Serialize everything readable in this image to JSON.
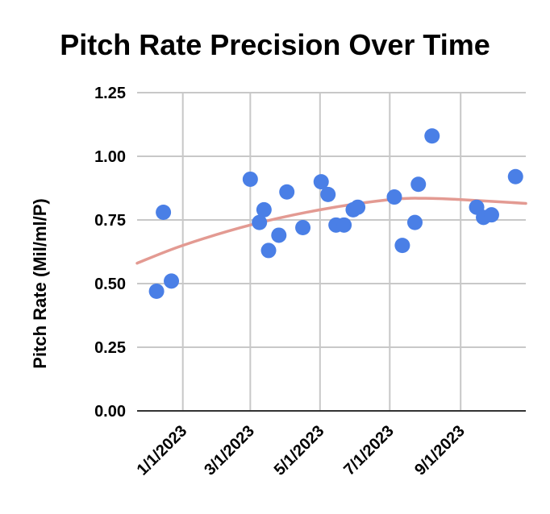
{
  "chart_data": {
    "type": "scatter",
    "title": "Pitch Rate Precision Over Time",
    "xlabel": "",
    "ylabel": "Pitch Rate (Mil/ml/P)",
    "xlim": [
      "2022-11-22",
      "2023-10-28"
    ],
    "ylim": [
      0,
      1.25
    ],
    "grid": true,
    "legend": "none",
    "x_ticks": [
      "2023-01-01",
      "2023-03-01",
      "2023-05-01",
      "2023-07-01",
      "2023-09-01"
    ],
    "x_tick_labels": [
      "1/1/2023",
      "3/1/2023",
      "5/1/2023",
      "7/1/2023",
      "9/1/2023"
    ],
    "y_ticks": [
      0,
      0.25,
      0.5,
      0.75,
      1.0,
      1.25
    ],
    "y_tick_labels": [
      "0.00",
      "0.25",
      "0.50",
      "0.75",
      "1.00",
      "1.25"
    ],
    "series": [
      {
        "color": "#4a7fe6",
        "points": [
          {
            "x": "2022-12-09",
            "y": 0.47
          },
          {
            "x": "2022-12-15",
            "y": 0.78
          },
          {
            "x": "2022-12-22",
            "y": 0.51
          },
          {
            "x": "2023-03-01",
            "y": 0.91
          },
          {
            "x": "2023-03-09",
            "y": 0.74
          },
          {
            "x": "2023-03-13",
            "y": 0.79
          },
          {
            "x": "2023-03-17",
            "y": 0.63
          },
          {
            "x": "2023-03-26",
            "y": 0.69
          },
          {
            "x": "2023-04-02",
            "y": 0.86
          },
          {
            "x": "2023-04-16",
            "y": 0.72
          },
          {
            "x": "2023-05-02",
            "y": 0.9
          },
          {
            "x": "2023-05-08",
            "y": 0.85
          },
          {
            "x": "2023-05-15",
            "y": 0.73
          },
          {
            "x": "2023-05-22",
            "y": 0.73
          },
          {
            "x": "2023-05-30",
            "y": 0.79
          },
          {
            "x": "2023-06-03",
            "y": 0.8
          },
          {
            "x": "2023-07-05",
            "y": 0.84
          },
          {
            "x": "2023-07-12",
            "y": 0.65
          },
          {
            "x": "2023-07-23",
            "y": 0.74
          },
          {
            "x": "2023-07-26",
            "y": 0.89
          },
          {
            "x": "2023-08-07",
            "y": 1.08
          },
          {
            "x": "2023-09-15",
            "y": 0.8
          },
          {
            "x": "2023-09-21",
            "y": 0.76
          },
          {
            "x": "2023-09-28",
            "y": 0.77
          },
          {
            "x": "2023-10-19",
            "y": 0.92
          }
        ]
      }
    ],
    "trendline": {
      "type": "polynomial",
      "color": "#e39a92",
      "points": [
        {
          "x": "2022-11-22",
          "y": 0.58
        },
        {
          "x": "2023-01-01",
          "y": 0.65
        },
        {
          "x": "2023-03-01",
          "y": 0.73
        },
        {
          "x": "2023-05-01",
          "y": 0.79
        },
        {
          "x": "2023-07-01",
          "y": 0.83
        },
        {
          "x": "2023-08-01",
          "y": 0.835
        },
        {
          "x": "2023-09-01",
          "y": 0.83
        },
        {
          "x": "2023-10-28",
          "y": 0.815
        }
      ]
    }
  }
}
